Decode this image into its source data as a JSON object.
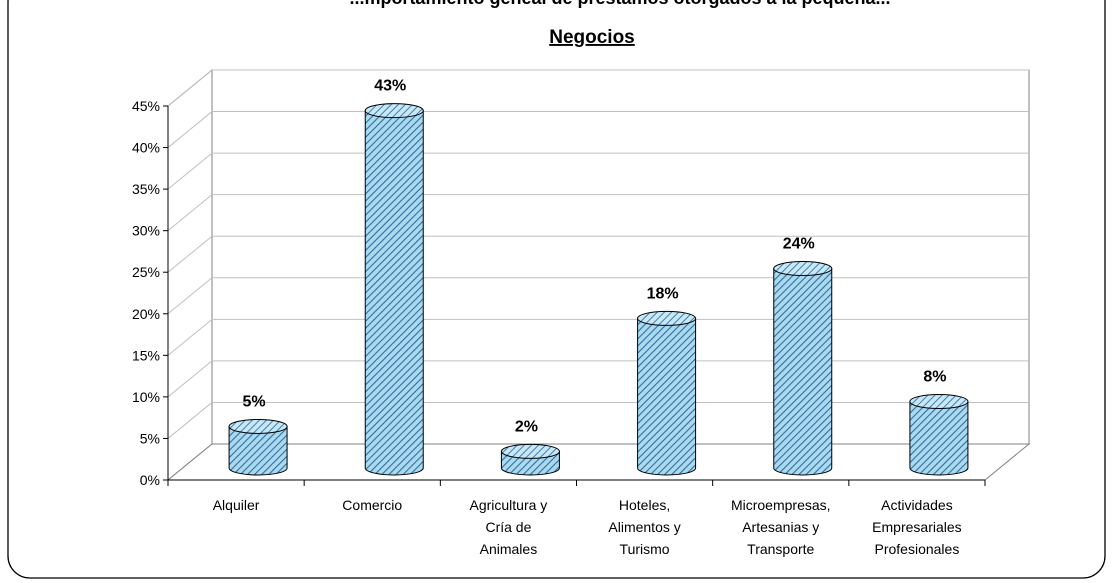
{
  "chart_data": {
    "type": "bar",
    "title": "...mportamiento geneal de préstamos otorgados a la pequeña...",
    "subtitle": "Negocios",
    "categories": [
      [
        "Alquiler"
      ],
      [
        "Comercio"
      ],
      [
        "Agricultura y",
        "Cría de",
        "Animales"
      ],
      [
        "Hoteles,",
        "Alimentos y",
        "Turismo"
      ],
      [
        "Microempresas,",
        "Artesanias y",
        "Transporte"
      ],
      [
        "Actividades",
        "Empresariales",
        "Profesionales"
      ]
    ],
    "values": [
      5,
      43,
      2,
      18,
      24,
      8
    ],
    "data_labels": [
      "5%",
      "43%",
      "2%",
      "18%",
      "24%",
      "8%"
    ],
    "y_ticks": [
      "0%",
      "5%",
      "10%",
      "15%",
      "20%",
      "25%",
      "30%",
      "35%",
      "40%",
      "45%"
    ],
    "ylim": [
      0,
      45
    ],
    "grid": true,
    "legend": "none",
    "bar_style": "3d-cylinder",
    "colors": {
      "bar": "#9fd4ec",
      "hatch": "#3b6a9c",
      "grid": "#c0c0c0",
      "axis": "#808080"
    }
  }
}
